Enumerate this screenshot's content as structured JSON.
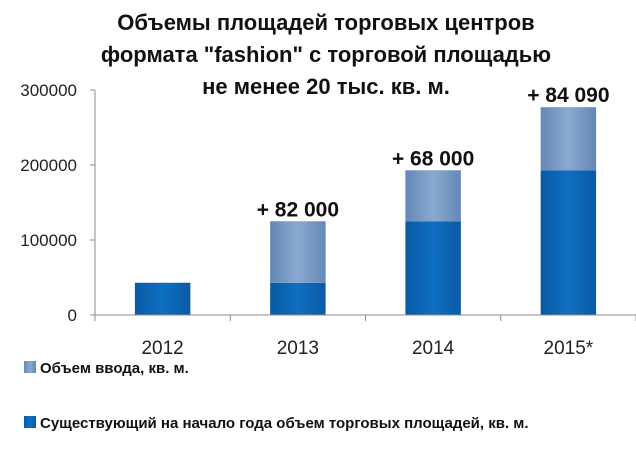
{
  "chart_data": {
    "type": "bar",
    "stacked": true,
    "title_lines": [
      "Объемы площадей торговых центров",
      "формата \"fashion\" с торговой площадью",
      "не менее 20 тыс. кв. м."
    ],
    "categories": [
      "2012",
      "2013",
      "2014",
      "2015*"
    ],
    "series": [
      {
        "name": "Существующий на начало года объем торговых площадей, кв. м.",
        "values": [
          43000,
          43000,
          125000,
          193000
        ],
        "color": "#0563b4"
      },
      {
        "name": "Объем ввода, кв. м.",
        "values": [
          0,
          82000,
          68000,
          84090
        ],
        "color": "#6e93bf"
      }
    ],
    "annotations": [
      "",
      "+ 82 000",
      "+ 68 000",
      "+ 84 090"
    ],
    "yticks": [
      "0",
      "100000",
      "200000",
      "300000"
    ],
    "ylim": [
      0,
      300000
    ],
    "grid": false,
    "legend_position": "bottom"
  }
}
